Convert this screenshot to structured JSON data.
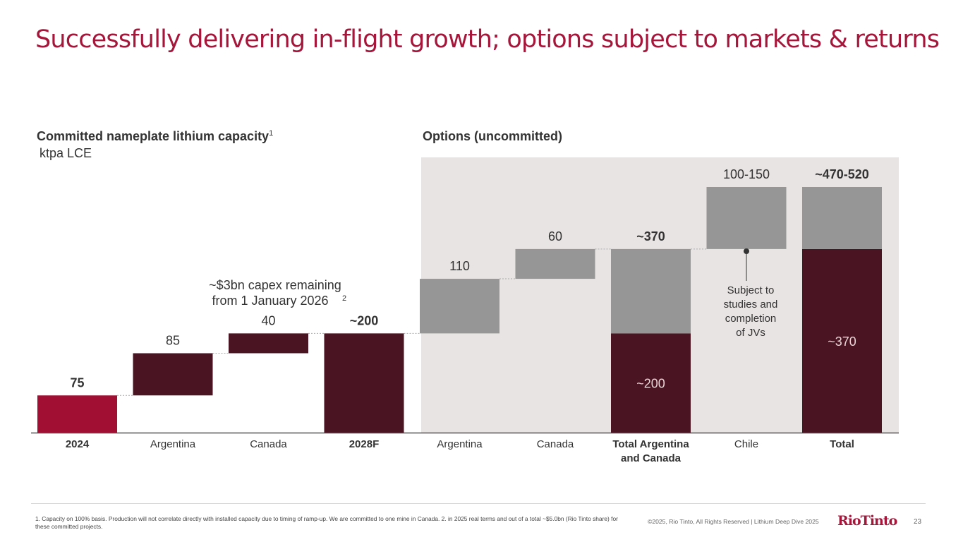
{
  "slide": {
    "title": "Successfully delivering in-flight growth; options subject to markets & returns",
    "committed_heading": "Committed nameplate lithium capacity",
    "committed_heading_sup": "1",
    "unit": "ktpa LCE",
    "options_heading": "Options (uncommitted)"
  },
  "chart_data": {
    "type": "bar",
    "subtype": "waterfall",
    "unit": "ktpa LCE",
    "categories": [
      "2024",
      "Argentina",
      "Canada",
      "2028F",
      "Argentina",
      "Canada",
      "Total Argentina and Canada",
      "Chile",
      "Total"
    ],
    "bars": [
      {
        "category": "2024",
        "base": 0,
        "value": 75,
        "label": "75",
        "label_bold": true,
        "kind": "total",
        "color": "#a11033"
      },
      {
        "category": "Argentina",
        "base": 75,
        "value": 85,
        "label": "85",
        "label_bold": false,
        "kind": "increment",
        "color": "#4a1422"
      },
      {
        "category": "Canada",
        "base": 160,
        "value": 40,
        "label": "40",
        "label_bold": false,
        "kind": "increment",
        "color": "#4a1422"
      },
      {
        "category": "2028F",
        "base": 0,
        "value": 200,
        "label": "~200",
        "label_bold": true,
        "kind": "total",
        "color": "#4a1422"
      },
      {
        "category": "Argentina",
        "base": 200,
        "value": 110,
        "label": "110",
        "label_bold": false,
        "kind": "increment",
        "color": "#969696"
      },
      {
        "category": "Canada",
        "base": 310,
        "value": 60,
        "label": "60",
        "label_bold": false,
        "kind": "increment",
        "color": "#969696"
      },
      {
        "category": "Total Argentina and Canada",
        "base": 0,
        "value": 370,
        "label": "~370",
        "label_bold": true,
        "kind": "stacked",
        "segments": [
          {
            "value": 200,
            "color": "#4a1422",
            "label": "~200"
          },
          {
            "value": 170,
            "color": "#969696",
            "label": ""
          }
        ]
      },
      {
        "category": "Chile",
        "base": 370,
        "value": 125,
        "label": "100-150",
        "label_bold": false,
        "kind": "increment",
        "color": "#969696"
      },
      {
        "category": "Total",
        "base": 0,
        "value": 495,
        "label": "~470-520",
        "label_bold": true,
        "kind": "stacked",
        "segments": [
          {
            "value": 370,
            "color": "#4a1422",
            "label": "~370"
          },
          {
            "value": 125,
            "color": "#969696",
            "label": ""
          }
        ]
      }
    ],
    "x_tick_labels": [
      {
        "lines": [
          "2024"
        ],
        "bold": true
      },
      {
        "lines": [
          "Argentina"
        ],
        "bold": false
      },
      {
        "lines": [
          "Canada"
        ],
        "bold": false
      },
      {
        "lines": [
          "2028F"
        ],
        "bold": true
      },
      {
        "lines": [
          "Argentina"
        ],
        "bold": false
      },
      {
        "lines": [
          "Canada"
        ],
        "bold": false
      },
      {
        "lines": [
          "Total Argentina",
          "and Canada"
        ],
        "bold": true
      },
      {
        "lines": [
          "Chile"
        ],
        "bold": false
      },
      {
        "lines": [
          "Total"
        ],
        "bold": true
      }
    ],
    "annotations": {
      "capex": [
        "~$3bn capex remaining",
        "from 1 January 2026"
      ],
      "capex_sup": "2",
      "chile_note": [
        "Subject to",
        "studies and",
        "completion",
        "of JVs"
      ]
    },
    "ylim": [
      0,
      520
    ]
  },
  "footer": {
    "footnote": "1. Capacity on 100% basis. Production will not correlate directly with installed capacity due to timing of ramp-up. We are committed to one mine in Canada. 2. in 2025 real terms and out of a total ~$5.0bn (Rio Tinto share) for these committed projects.",
    "copyright": "©2025, Rio Tinto, All Rights Reserved  |  Lithium Deep Dive 2025",
    "logo": "RioTinto",
    "page_number": "23"
  }
}
